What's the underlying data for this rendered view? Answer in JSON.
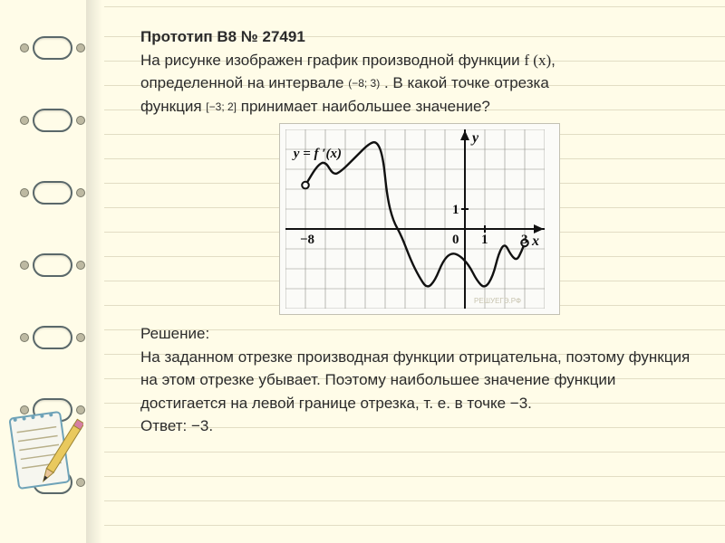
{
  "heading": {
    "title": "Прототип B8 № 27491",
    "line1a": "На рисунке изображен график производной функции",
    "fx": "f (x)",
    "line1b": ",",
    "line2a": "определенной на интервале ",
    "interval": "(−8; 3)",
    "line2b": ". В какой точке отрезка",
    "line3a": "функция",
    "segment": "[−3; 2]",
    "line3b": "   принимает наибольшее значение?"
  },
  "chart": {
    "label_curve": "y = f ′(x)",
    "label_y": "y",
    "label_x": "x",
    "label_0": "0",
    "label_1": "1",
    "label_neg8": "−8",
    "label_3": "3",
    "watermark": "РЕШУЕГЭ.РФ",
    "grid": {
      "x_min": -9,
      "x_max": 4,
      "y_min": -4,
      "y_max": 5,
      "cell": 22
    },
    "curve_points": [
      [
        -8,
        2.2
      ],
      [
        -7.4,
        3.2
      ],
      [
        -7,
        3.4
      ],
      [
        -6.6,
        2.7
      ],
      [
        -6.2,
        2.9
      ],
      [
        -5.5,
        3.6
      ],
      [
        -4.8,
        4.3
      ],
      [
        -4.4,
        4.4
      ],
      [
        -4.1,
        3.6
      ],
      [
        -3.9,
        1.6
      ],
      [
        -3.6,
        0.4
      ],
      [
        -3.2,
        -0.3
      ],
      [
        -2.7,
        -1.6
      ],
      [
        -2.3,
        -2.4
      ],
      [
        -1.9,
        -3.0
      ],
      [
        -1.5,
        -2.6
      ],
      [
        -1.1,
        -1.6
      ],
      [
        -0.7,
        -1.2
      ],
      [
        -0.3,
        -1.3
      ],
      [
        0.2,
        -1.8
      ],
      [
        0.6,
        -2.6
      ],
      [
        1.0,
        -3.0
      ],
      [
        1.4,
        -2.4
      ],
      [
        1.7,
        -1.2
      ],
      [
        2.0,
        -0.7
      ],
      [
        2.3,
        -1.3
      ],
      [
        2.6,
        -1.6
      ],
      [
        2.85,
        -1.1
      ],
      [
        3.0,
        -0.7
      ]
    ],
    "open_points": [
      [
        -8,
        2.2
      ],
      [
        3.0,
        -0.7
      ]
    ],
    "colors": {
      "grid": "#8f8f86",
      "axis": "#111",
      "curve": "#111",
      "bg": "#fbfbf8",
      "label": "#111"
    }
  },
  "solution": {
    "title": "Решение:",
    "body": "На заданном отрезке производная функции отрицательна, поэтому функция на этом отрезке убывает. Поэтому наибольшее значение функции достигается на левой границе отрезка, т. е. в точке −3.",
    "answer": "Ответ: −3."
  }
}
